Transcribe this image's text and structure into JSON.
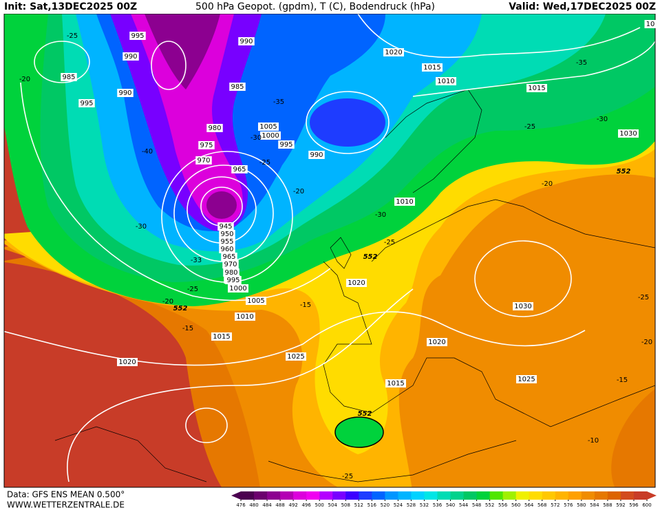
{
  "header": {
    "init": "Init: Sat,13DEC2025 00Z",
    "title": "500 hPa Geopot. (gpdm), T (C), Bodendruck (hPa)",
    "valid": "Valid: Wed,17DEC2025 00Z"
  },
  "footer": {
    "source": "Data: GFS ENS MEAN 0.500°",
    "site": "WWW.WETTERZENTRALE.DE"
  },
  "colorbar": {
    "values": [
      476,
      480,
      484,
      488,
      492,
      496,
      500,
      504,
      508,
      512,
      516,
      520,
      524,
      528,
      532,
      536,
      540,
      544,
      548,
      552,
      556,
      560,
      564,
      568,
      572,
      576,
      580,
      584,
      588,
      592,
      596,
      600
    ],
    "colors": [
      "#4b0050",
      "#6c006e",
      "#8c0090",
      "#b400b4",
      "#dc00dc",
      "#f000f0",
      "#b400ff",
      "#7800ff",
      "#3c00ff",
      "#1e3cff",
      "#0064ff",
      "#0096ff",
      "#00b4ff",
      "#00d2ff",
      "#00e6e6",
      "#00dcb4",
      "#00d28c",
      "#00c864",
      "#00d23c",
      "#50e600",
      "#a0f000",
      "#f0f000",
      "#ffdc00",
      "#ffc800",
      "#ffb400",
      "#ffa000",
      "#f08c00",
      "#e67800",
      "#dc6400",
      "#d24b1e",
      "#c83c28"
    ]
  },
  "map": {
    "labels": [
      "995",
      "990",
      "985",
      "995",
      "990",
      "-25",
      "-20",
      "990",
      "985",
      "-35",
      "980",
      "975",
      "1005",
      "1000",
      "995",
      "-30",
      "970",
      "-25",
      "965",
      "990",
      "-20",
      "-40",
      "-30",
      "945",
      "950",
      "955",
      "960",
      "965",
      "970",
      "980",
      "990",
      "995",
      "1000",
      "1005",
      "1010",
      "1015",
      "1020",
      "1025",
      "-33",
      "-25",
      "-20",
      "-15",
      "552",
      "552",
      "552",
      "552",
      "1010",
      "-30",
      "-25",
      "1020",
      "-15",
      "1020",
      "1015",
      "1030",
      "1025",
      "1010",
      "1015",
      "1020",
      "1015",
      "-35",
      "-30",
      "1030",
      "-25",
      "-20",
      "-25",
      "-20",
      "-15",
      "-10",
      "-25",
      "10"
    ]
  }
}
